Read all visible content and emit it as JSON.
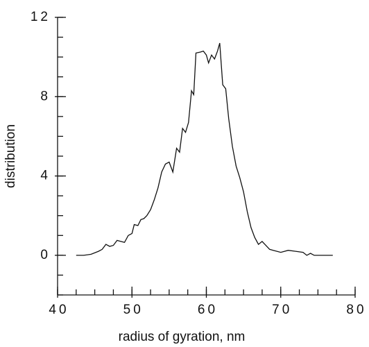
{
  "chart_data": {
    "type": "line",
    "x_label": "radius of gyration, nm",
    "y_label": "distribution",
    "x": [
      42.5,
      43.5,
      44.5,
      45.5,
      46,
      46.5,
      47,
      47.5,
      48,
      48.5,
      49,
      49.5,
      50,
      50.3,
      50.8,
      51.2,
      51.6,
      52,
      52.5,
      53,
      53.5,
      54,
      54.5,
      55,
      55.5,
      56,
      56.4,
      56.8,
      57.2,
      57.6,
      58,
      58.3,
      58.6,
      59.2,
      59.6,
      60,
      60.3,
      60.7,
      61.1,
      61.5,
      61.8,
      62.2,
      62.6,
      63,
      63.5,
      64,
      64.5,
      65,
      65.5,
      66,
      66.5,
      67,
      67.5,
      68,
      68.5,
      69,
      70,
      71,
      72,
      73,
      73.5,
      74,
      74.5,
      75.5,
      77
    ],
    "series": [
      {
        "color": "#111111",
        "values": [
          0,
          0,
          0.05,
          0.2,
          0.3,
          0.55,
          0.45,
          0.5,
          0.75,
          0.7,
          0.65,
          1.0,
          1.1,
          1.55,
          1.5,
          1.8,
          1.85,
          2.0,
          2.3,
          2.8,
          3.4,
          4.2,
          4.6,
          4.7,
          4.2,
          5.4,
          5.2,
          6.4,
          6.2,
          6.7,
          8.3,
          8.1,
          10.2,
          10.25,
          10.3,
          10.1,
          9.7,
          10.1,
          9.9,
          10.3,
          10.7,
          8.6,
          8.4,
          6.9,
          5.5,
          4.5,
          3.9,
          3.2,
          2.2,
          1.4,
          0.9,
          0.55,
          0.7,
          0.5,
          0.3,
          0.25,
          0.15,
          0.25,
          0.2,
          0.15,
          0.0,
          0.1,
          0,
          0,
          0
        ]
      }
    ],
    "xlim": [
      40,
      80
    ],
    "xticks": [
      40,
      50,
      60,
      70,
      80
    ],
    "ylim": [
      -2,
      12
    ],
    "yticks": [
      0,
      4,
      8,
      12
    ]
  }
}
